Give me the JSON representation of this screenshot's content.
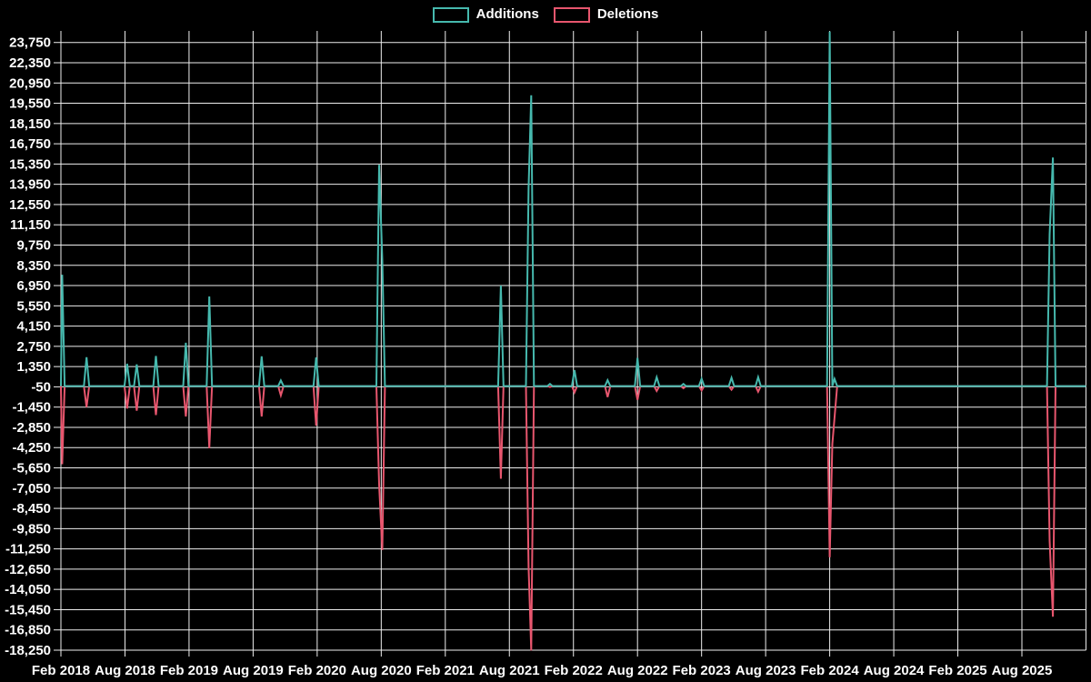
{
  "legend": {
    "items": [
      {
        "label": "Additions",
        "color": "#46b9ae"
      },
      {
        "label": "Deletions",
        "color": "#e8566e"
      }
    ]
  },
  "colors": {
    "background": "#000000",
    "grid": "#eeeeee",
    "axis_text": "#ffffff",
    "additions": "#46b9ae",
    "deletions": "#e8566e"
  },
  "chart_data": {
    "type": "line",
    "title": "",
    "xlabel": "",
    "ylabel": "",
    "grid": "on",
    "legend_position": "top-center",
    "x_axis_unit": "months since Feb 2018",
    "xlim_months": [
      0,
      96
    ],
    "ylim": [
      -18250,
      24550
    ],
    "x_tick_months": [
      0,
      6,
      12,
      18,
      24,
      30,
      36,
      42,
      48,
      54,
      60,
      66,
      72,
      78,
      84,
      90
    ],
    "x_tick_labels": [
      "Feb 2018",
      "Aug 2018",
      "Feb 2019",
      "Aug 2019",
      "Feb 2020",
      "Aug 2020",
      "Feb 2021",
      "Aug 2021",
      "Feb 2022",
      "Aug 2022",
      "Feb 2023",
      "Aug 2023",
      "Feb 2024",
      "Aug 2024",
      "Feb 2025",
      "Aug 2025"
    ],
    "y_tick_labels": [
      "23,750",
      "22,350",
      "20,950",
      "19,550",
      "18,150",
      "16,750",
      "15,350",
      "13,950",
      "12,550",
      "11,150",
      "9,750",
      "8,350",
      "6,950",
      "5,550",
      "4,150",
      "2,750",
      "1,350",
      "-50",
      "-1,450",
      "-2,850",
      "-4,250",
      "-5,650",
      "-7,050",
      "-8,450",
      "-9,850",
      "-11,250",
      "-12,650",
      "-14,050",
      "-15,450",
      "-16,850",
      "-18,250"
    ],
    "series": [
      {
        "name": "Additions",
        "color": "#46b9ae",
        "points": [
          [
            0,
            0
          ],
          [
            0.12,
            7700
          ],
          [
            0.35,
            0
          ],
          [
            2.15,
            0
          ],
          [
            2.4,
            2000
          ],
          [
            2.65,
            0
          ],
          [
            5.95,
            0
          ],
          [
            6.2,
            1550
          ],
          [
            6.45,
            0
          ],
          [
            6.85,
            0
          ],
          [
            7.1,
            1500
          ],
          [
            7.35,
            0
          ],
          [
            8.65,
            0
          ],
          [
            8.9,
            2080
          ],
          [
            9.15,
            0
          ],
          [
            11.45,
            0
          ],
          [
            11.7,
            3000
          ],
          [
            11.95,
            0
          ],
          [
            13.65,
            0
          ],
          [
            13.9,
            6200
          ],
          [
            14.15,
            0
          ],
          [
            18.55,
            0
          ],
          [
            18.8,
            2060
          ],
          [
            19.05,
            0
          ],
          [
            20.35,
            0
          ],
          [
            20.6,
            400
          ],
          [
            20.85,
            0
          ],
          [
            23.65,
            0
          ],
          [
            23.9,
            1980
          ],
          [
            24.15,
            0
          ],
          [
            29.55,
            0
          ],
          [
            29.8,
            15300
          ],
          [
            30.1,
            8700
          ],
          [
            30.35,
            0
          ],
          [
            40.95,
            0
          ],
          [
            41.2,
            6950
          ],
          [
            41.45,
            0
          ],
          [
            43.55,
            0
          ],
          [
            43.8,
            13700
          ],
          [
            44.05,
            20100
          ],
          [
            44.3,
            0
          ],
          [
            45.55,
            0
          ],
          [
            45.8,
            150
          ],
          [
            46.05,
            0
          ],
          [
            47.85,
            0
          ],
          [
            48.1,
            1100
          ],
          [
            48.35,
            0
          ],
          [
            50.95,
            0
          ],
          [
            51.2,
            410
          ],
          [
            51.45,
            0
          ],
          [
            53.75,
            0
          ],
          [
            54,
            1950
          ],
          [
            54.25,
            0
          ],
          [
            55.55,
            0
          ],
          [
            55.8,
            620
          ],
          [
            56.05,
            0
          ],
          [
            58.05,
            0
          ],
          [
            58.3,
            150
          ],
          [
            58.55,
            0
          ],
          [
            59.75,
            0
          ],
          [
            60,
            510
          ],
          [
            60.25,
            0
          ],
          [
            62.55,
            0
          ],
          [
            62.8,
            575
          ],
          [
            63.05,
            0
          ],
          [
            65.05,
            0
          ],
          [
            65.3,
            620
          ],
          [
            65.55,
            0
          ],
          [
            71.75,
            0
          ],
          [
            72,
            24500
          ],
          [
            72.25,
            0
          ],
          [
            72.45,
            500
          ],
          [
            72.7,
            0
          ],
          [
            92.35,
            0
          ],
          [
            92.6,
            10500
          ],
          [
            92.9,
            15800
          ],
          [
            93.15,
            0
          ],
          [
            96,
            0
          ]
        ]
      },
      {
        "name": "Deletions",
        "color": "#e8566e",
        "points": [
          [
            0,
            0
          ],
          [
            0.12,
            -5400
          ],
          [
            0.35,
            0
          ],
          [
            2.15,
            0
          ],
          [
            2.4,
            -1450
          ],
          [
            2.65,
            0
          ],
          [
            5.95,
            0
          ],
          [
            6.2,
            -1550
          ],
          [
            6.45,
            0
          ],
          [
            6.85,
            0
          ],
          [
            7.1,
            -1700
          ],
          [
            7.35,
            0
          ],
          [
            8.65,
            0
          ],
          [
            8.9,
            -2000
          ],
          [
            9.15,
            0
          ],
          [
            11.45,
            0
          ],
          [
            11.7,
            -2100
          ],
          [
            11.95,
            0
          ],
          [
            13.65,
            0
          ],
          [
            13.9,
            -4300
          ],
          [
            14.15,
            0
          ],
          [
            18.55,
            0
          ],
          [
            18.8,
            -2100
          ],
          [
            19.05,
            0
          ],
          [
            20.35,
            0
          ],
          [
            20.6,
            -640
          ],
          [
            20.85,
            0
          ],
          [
            23.65,
            0
          ],
          [
            23.9,
            -2730
          ],
          [
            24.15,
            0
          ],
          [
            29.55,
            0
          ],
          [
            29.8,
            -6800
          ],
          [
            30.1,
            -11330
          ],
          [
            30.35,
            0
          ],
          [
            40.95,
            0
          ],
          [
            41.2,
            -6400
          ],
          [
            41.45,
            0
          ],
          [
            43.55,
            0
          ],
          [
            43.8,
            -12500
          ],
          [
            44.05,
            -18270
          ],
          [
            44.3,
            0
          ],
          [
            45.55,
            0
          ],
          [
            45.8,
            -60
          ],
          [
            46.05,
            0
          ],
          [
            47.85,
            0
          ],
          [
            48.1,
            -430
          ],
          [
            48.35,
            0
          ],
          [
            50.95,
            0
          ],
          [
            51.2,
            -750
          ],
          [
            51.45,
            0
          ],
          [
            53.75,
            0
          ],
          [
            54,
            -950
          ],
          [
            54.25,
            0
          ],
          [
            55.55,
            0
          ],
          [
            55.8,
            -330
          ],
          [
            56.05,
            0
          ],
          [
            58.05,
            0
          ],
          [
            58.3,
            -150
          ],
          [
            58.55,
            0
          ],
          [
            59.75,
            0
          ],
          [
            60,
            -300
          ],
          [
            60.25,
            0
          ],
          [
            62.55,
            0
          ],
          [
            62.8,
            -250
          ],
          [
            63.05,
            0
          ],
          [
            65.05,
            0
          ],
          [
            65.3,
            -390
          ],
          [
            65.55,
            0
          ],
          [
            71.75,
            0
          ],
          [
            72,
            -11830
          ],
          [
            72.25,
            -4000
          ],
          [
            72.7,
            0
          ],
          [
            92.35,
            0
          ],
          [
            92.6,
            -10700
          ],
          [
            92.9,
            -15940
          ],
          [
            93.15,
            0
          ],
          [
            96,
            0
          ]
        ]
      }
    ]
  }
}
